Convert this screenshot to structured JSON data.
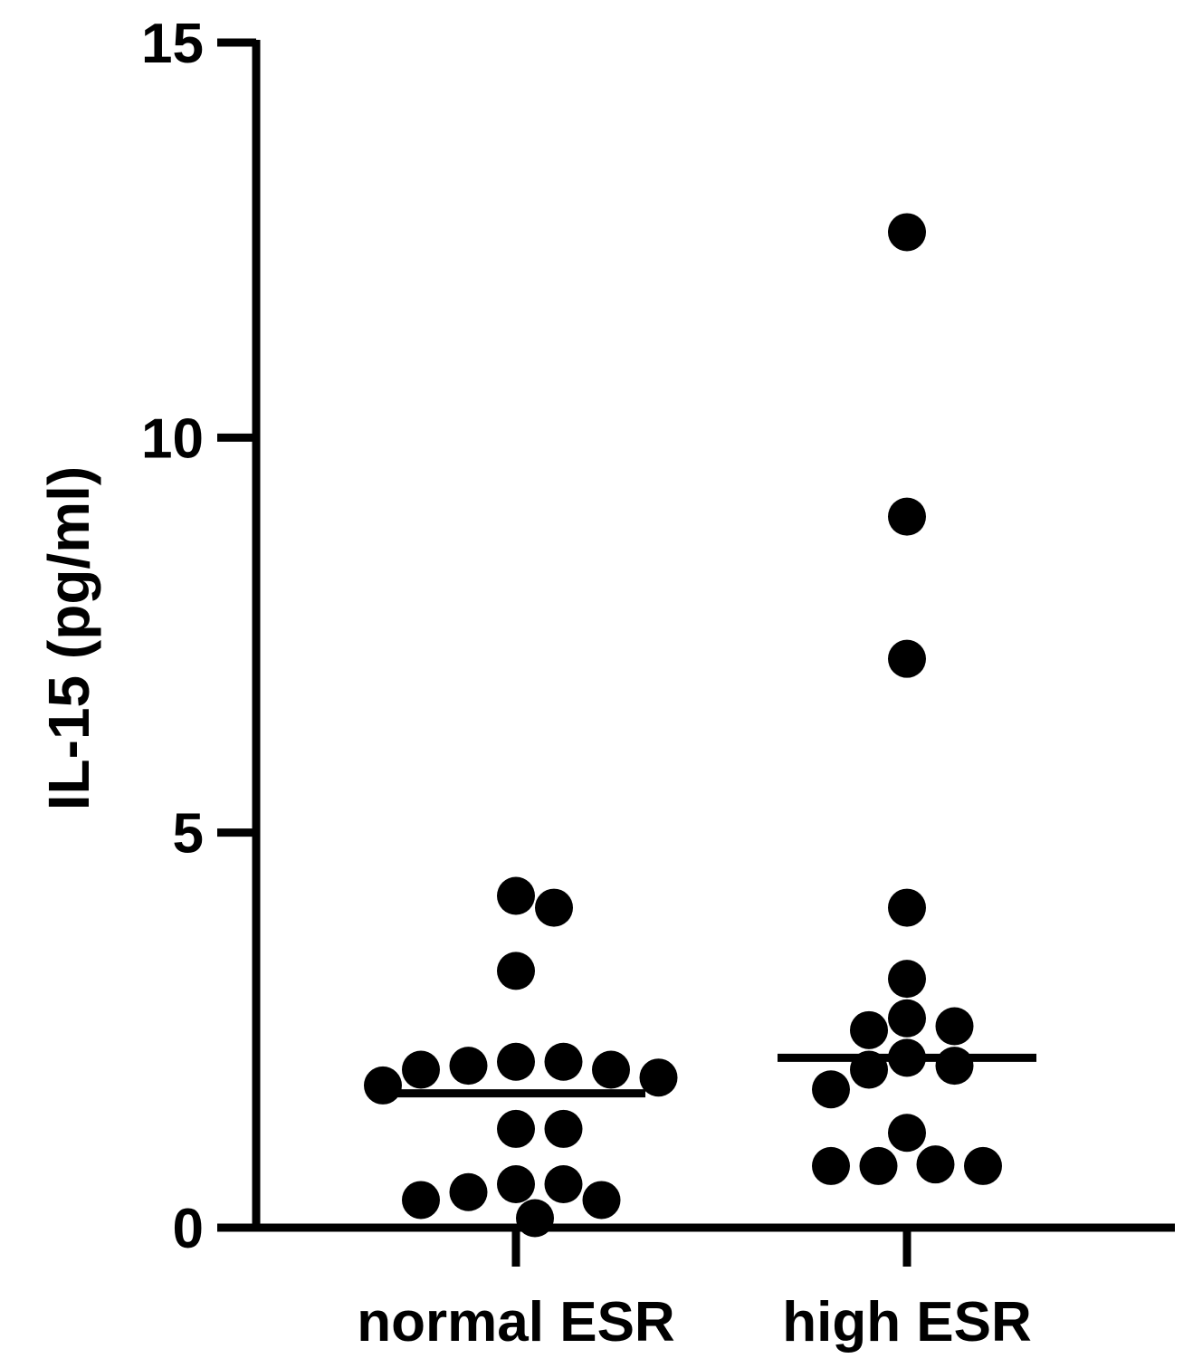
{
  "chart_data": {
    "type": "scatter",
    "title": "",
    "xlabel": "",
    "ylabel": "IL-15 (pg/ml)",
    "ylim": [
      0,
      15
    ],
    "yticks": [
      0,
      5,
      10,
      15
    ],
    "grid": false,
    "categories": [
      "normal ESR",
      "high ESR"
    ],
    "series": [
      {
        "category": "normal ESR",
        "median": 1.7,
        "values": [
          4.2,
          4.05,
          3.25,
          2.0,
          2.1,
          1.9,
          2.0,
          1.8,
          2.05,
          2.1,
          1.25,
          1.25,
          0.55,
          0.55,
          0.35,
          0.35,
          0.45,
          0.12
        ]
      },
      {
        "category": "high ESR",
        "median": 2.15,
        "values": [
          12.6,
          9.0,
          7.2,
          4.05,
          3.15,
          2.5,
          2.65,
          2.55,
          2.15,
          2.05,
          2.0,
          1.75,
          1.2,
          0.8,
          0.78,
          0.78,
          0.78
        ]
      }
    ],
    "colors": {
      "points": "#000000",
      "axes": "#000000",
      "median": "#000000"
    }
  }
}
